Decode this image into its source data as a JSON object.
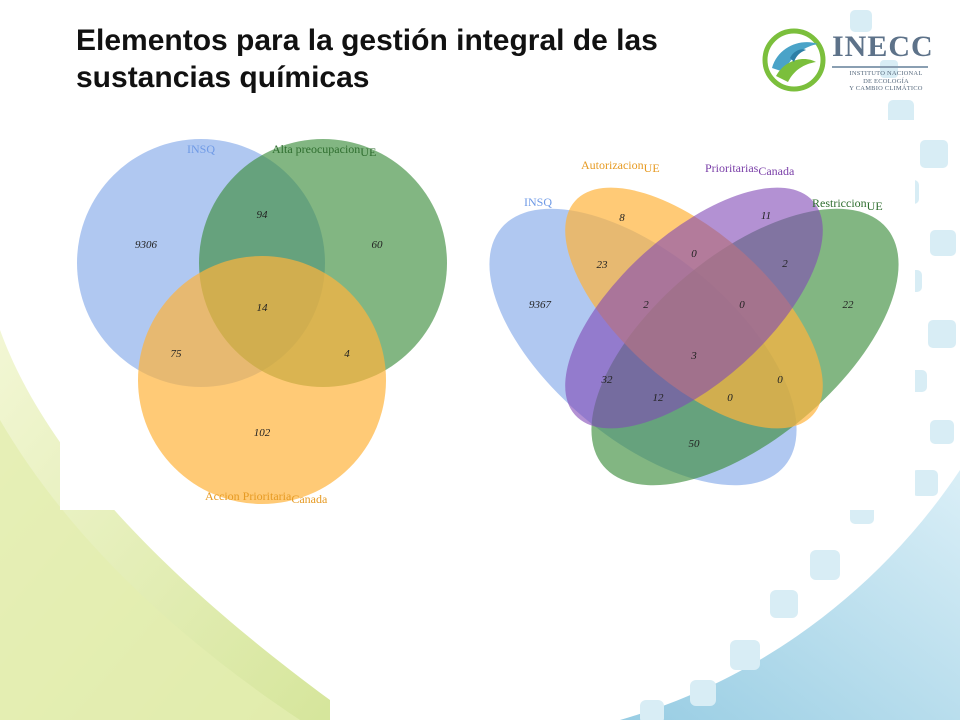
{
  "slide": {
    "title": "Elementos para la gestión integral de las sustancias químicas"
  },
  "logo": {
    "name": "INECC",
    "subtitle_lines": [
      "INSTITUTO NACIONAL",
      "DE ECOLOGÍA",
      "Y CAMBIO CLIMÁTICO"
    ]
  },
  "colors": {
    "blue": "#6f9ae6",
    "green": "#3f8f3f",
    "orange": "#ffb43c",
    "purple": "#8047b5",
    "background_green": "#c8dd7a",
    "background_blue": "#8cc7e0"
  },
  "venn3": {
    "sets": [
      {
        "label": "INSQ",
        "subscript": "",
        "color": "#6f9ae6"
      },
      {
        "label": "Alta preocupacion",
        "subscript": "UE",
        "color": "#3f8f3f"
      },
      {
        "label": "Accion Prioritaria",
        "subscript": "Canada",
        "color": "#ffb43c"
      }
    ],
    "regions": [
      {
        "sets": [
          "INSQ"
        ],
        "value": "9306"
      },
      {
        "sets": [
          "INSQ",
          "Alta preocupacion"
        ],
        "value": "94"
      },
      {
        "sets": [
          "Alta preocupacion"
        ],
        "value": "60"
      },
      {
        "sets": [
          "INSQ",
          "Alta preocupacion",
          "Accion Prioritaria"
        ],
        "value": "14"
      },
      {
        "sets": [
          "INSQ",
          "Accion Prioritaria"
        ],
        "value": "75"
      },
      {
        "sets": [
          "Alta preocupacion",
          "Accion Prioritaria"
        ],
        "value": "4"
      },
      {
        "sets": [
          "Accion Prioritaria"
        ],
        "value": "102"
      }
    ]
  },
  "venn4": {
    "sets": [
      {
        "label": "INSQ",
        "subscript": "",
        "color": "#6f9ae6"
      },
      {
        "label": "Autorizacion",
        "subscript": "UE",
        "color": "#ffb43c"
      },
      {
        "label": "Prioritarias",
        "subscript": "Canada",
        "color": "#8047b5"
      },
      {
        "label": "Restriccion",
        "subscript": "UE",
        "color": "#3f8f3f"
      }
    ],
    "regions": [
      {
        "sets": [
          "Autorizacion"
        ],
        "value": "8"
      },
      {
        "sets": [
          "Prioritarias"
        ],
        "value": "11"
      },
      {
        "sets": [
          "Autorizacion",
          "Prioritarias"
        ],
        "value": "0"
      },
      {
        "sets": [
          "INSQ",
          "Autorizacion"
        ],
        "value": "23"
      },
      {
        "sets": [
          "Prioritarias",
          "Restriccion"
        ],
        "value": "2"
      },
      {
        "sets": [
          "INSQ"
        ],
        "value": "9367"
      },
      {
        "sets": [
          "INSQ",
          "Autorizacion",
          "Prioritarias"
        ],
        "value": "2"
      },
      {
        "sets": [
          "Autorizacion",
          "Prioritarias",
          "Restriccion"
        ],
        "value": "0"
      },
      {
        "sets": [
          "Restriccion"
        ],
        "value": "22"
      },
      {
        "sets": [
          "INSQ",
          "Autorizacion",
          "Prioritarias",
          "Restriccion"
        ],
        "value": "3"
      },
      {
        "sets": [
          "INSQ",
          "Prioritarias"
        ],
        "value": "32"
      },
      {
        "sets": [
          "Autorizacion",
          "Restriccion"
        ],
        "value": "0"
      },
      {
        "sets": [
          "INSQ",
          "Prioritarias",
          "Restriccion"
        ],
        "value": "12"
      },
      {
        "sets": [
          "INSQ",
          "Autorizacion",
          "Restriccion"
        ],
        "value": "0"
      },
      {
        "sets": [
          "INSQ",
          "Restriccion"
        ],
        "value": "50"
      }
    ]
  }
}
